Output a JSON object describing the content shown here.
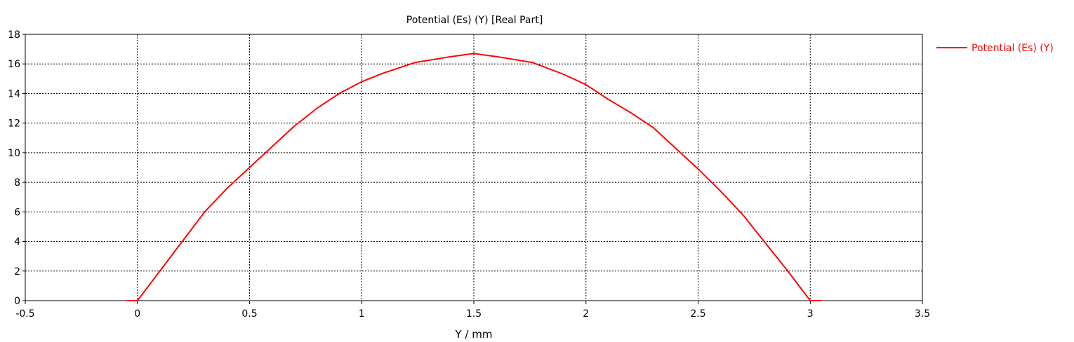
{
  "chart_data": {
    "type": "line",
    "title": "Potential (Es) (Y) [Real Part]",
    "xlabel": "Y / mm",
    "ylabel": "",
    "xlim": [
      -0.5,
      3.5
    ],
    "ylim": [
      0,
      18
    ],
    "xticks": [
      "-0.5",
      "0",
      "0.5",
      "1",
      "1.5",
      "2",
      "2.5",
      "3",
      "3.5"
    ],
    "yticks": [
      "0",
      "2",
      "4",
      "6",
      "8",
      "10",
      "12",
      "14",
      "16",
      "18"
    ],
    "grid": true,
    "legend_position": "right",
    "series": [
      {
        "name": "Potential (Es) (Y)",
        "color": "#ff0000",
        "x": [
          -0.05,
          0,
          0.1,
          0.2,
          0.3,
          0.4,
          0.5,
          0.6,
          0.7,
          0.8,
          0.9,
          1.0,
          1.1,
          1.24,
          1.4,
          1.5,
          1.6,
          1.76,
          1.9,
          2.0,
          2.1,
          2.2,
          2.3,
          2.4,
          2.5,
          2.6,
          2.7,
          2.8,
          2.9,
          3.0,
          3.05
        ],
        "values": [
          0,
          0,
          2.0,
          4.0,
          6.0,
          7.6,
          9.0,
          10.4,
          11.8,
          13.0,
          14.0,
          14.8,
          15.4,
          16.1,
          16.5,
          16.7,
          16.5,
          16.1,
          15.3,
          14.6,
          13.6,
          12.7,
          11.7,
          10.3,
          8.9,
          7.4,
          5.8,
          3.9,
          2.0,
          0,
          0
        ]
      }
    ]
  }
}
